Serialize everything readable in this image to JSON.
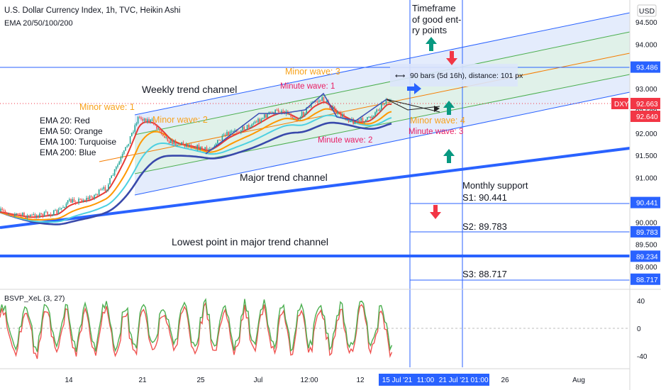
{
  "header": {
    "title": "U.S. Dollar Currency Index, 1h, TVC, Heikin Ashi",
    "indicator": "EMA 20/50/100/200",
    "currency": "USD"
  },
  "ema_legend": [
    "EMA 20: Red",
    "EMA 50: Orange",
    "EMA 100: Turquoise",
    "EMA 200: Blue"
  ],
  "annotations": {
    "weekly_channel": "Weekly trend channel",
    "major_channel": "Major trend channel",
    "lowest_point": "Lowest point in major trend channel",
    "minor_wave_1_orange": "Minor wave: 1",
    "minor_wave_2_orange": "Minor wave: 2",
    "minor_wave_3_orange": "Minor wave: 3",
    "minor_wave_4_orange": "Minor wave: 4",
    "minute_wave_1": "Minute wave: 1",
    "minute_wave_2": "Minute wave: 2",
    "minute_wave_3": "Minute wave: 3",
    "timeframe_lines": [
      "Timeframe",
      "of good ent-",
      "ry points"
    ],
    "measure": "90 bars (5d 16h), distance: 101 px",
    "monthly_support": "Monthly support",
    "s1": "S1: 90.441",
    "s2": "S2: 89.783",
    "s3": "S3: 88.717"
  },
  "price_axis": {
    "ticks": [
      "94.500",
      "94.000",
      "93.500",
      "93.000",
      "92.500",
      "92.000",
      "91.500",
      "91.000",
      "90.500",
      "90.000",
      "89.500",
      "89.000"
    ],
    "level_labels": [
      {
        "text": "93.486",
        "value": 93.486,
        "color": "#2962ff"
      },
      {
        "text": "90.441",
        "value": 90.441,
        "color": "#2962ff"
      },
      {
        "text": "89.783",
        "value": 89.783,
        "color": "#2962ff"
      },
      {
        "text": "89.234",
        "value": 89.234,
        "color": "#2962ff"
      },
      {
        "text": "88.717",
        "value": 88.717,
        "color": "#2962ff"
      }
    ],
    "symbol": {
      "text": "DXY",
      "color": "#f23645"
    },
    "last": {
      "text": "92.663",
      "value": 92.663,
      "color": "#f23645"
    },
    "close": {
      "text": "92.640",
      "value": 92.64,
      "color": "#f23645"
    }
  },
  "oscillator": {
    "label": "BSVP_XeL (3, 27)",
    "ticks": [
      "40",
      "0",
      "-40"
    ]
  },
  "time_axis": {
    "labels": [
      "14",
      "21",
      "25",
      "Jul",
      "12:00",
      "12",
      "26",
      "Aug"
    ],
    "highlights": [
      "15 Jul '21",
      "11:00",
      "21 Jul '21",
      "01:00"
    ]
  },
  "colors": {
    "up": "#26a69a",
    "down": "#ef5350",
    "ema20": "#e53935",
    "ema50": "#ff9800",
    "ema100": "#4dd0e1",
    "ema200": "#3949ab",
    "channel": "#2962ff",
    "orange_label": "#f7a21b",
    "magenta_label": "#e91e63"
  },
  "chart_data": [
    {
      "type": "line",
      "title": "U.S. Dollar Currency Index, 1h, TVC, Heikin Ashi",
      "x": [
        "14",
        "21",
        "25",
        "Jul",
        "12:00",
        "12",
        "15 Jul '21"
      ],
      "ylim": [
        88.4,
        94.8
      ],
      "series": [
        {
          "name": "EMA 20: Red",
          "values": [
            90.05,
            91.65,
            92.1,
            92.3,
            92.55,
            92.45,
            92.66
          ]
        },
        {
          "name": "EMA 50: Orange",
          "values": [
            90.05,
            91.4,
            92.0,
            92.25,
            92.5,
            92.4,
            92.55
          ]
        },
        {
          "name": "EMA 100: Turquoise",
          "values": [
            90.05,
            91.0,
            91.85,
            92.15,
            92.4,
            92.35,
            92.5
          ]
        },
        {
          "name": "EMA 200: Blue",
          "values": [
            90.05,
            90.7,
            91.6,
            92.05,
            92.25,
            92.3,
            92.4
          ]
        }
      ],
      "levels": [
        93.486,
        90.441,
        89.783,
        89.234,
        88.717
      ]
    },
    {
      "type": "line",
      "title": "BSVP_XeL (3, 27)",
      "ylim": [
        -45,
        45
      ]
    }
  ]
}
